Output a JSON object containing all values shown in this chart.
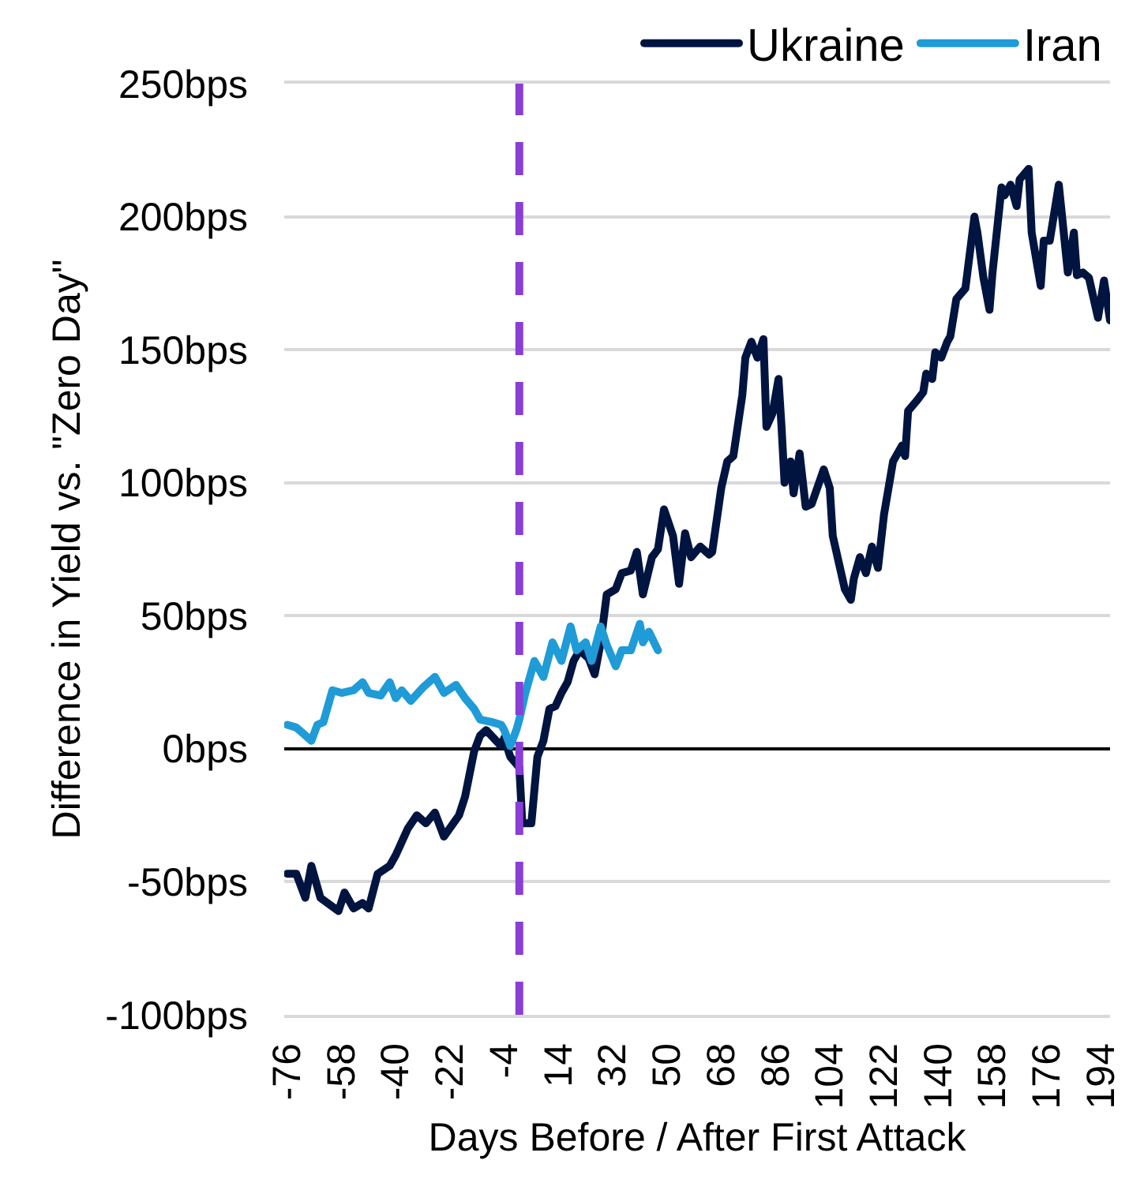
{
  "chart_data": {
    "type": "line",
    "xlabel": "Days Before / After First Attack",
    "ylabel": "Difference in Yield vs. \"Zero Day\"",
    "xlim": [
      -77,
      197
    ],
    "xticks": [
      -76,
      -58,
      -40,
      -22,
      -4,
      14,
      32,
      50,
      68,
      86,
      104,
      122,
      140,
      158,
      176,
      194
    ],
    "ylim": [
      -100,
      250
    ],
    "yticks": [
      {
        "value": -100,
        "label": "-100bps"
      },
      {
        "value": -50,
        "label": "-50bps"
      },
      {
        "value": 0,
        "label": "0bps"
      },
      {
        "value": 50,
        "label": "50bps"
      },
      {
        "value": 100,
        "label": "100bps"
      },
      {
        "value": 150,
        "label": "150bps"
      },
      {
        "value": 200,
        "label": "200bps"
      },
      {
        "value": 250,
        "label": "250bps"
      }
    ],
    "grid": "y",
    "legend": "top right",
    "marker": "none",
    "line_style": "solid",
    "ref_lines": [
      {
        "axis": "x",
        "value": 1,
        "color": "#8a3ed6",
        "line_style": "dashed"
      },
      {
        "axis": "y",
        "value": 0,
        "color": "#000000",
        "line_style": "solid"
      }
    ],
    "series": [
      {
        "name": "Ukraine",
        "color": "#001440",
        "x": [
          -76,
          -73,
          -70,
          -68,
          -65,
          -59,
          -57,
          -54,
          -51,
          -49,
          -46,
          -42,
          -40,
          -36,
          -33,
          -30,
          -27,
          -24,
          -19,
          -17,
          -14,
          -12,
          -10,
          -5,
          -4,
          -2,
          1,
          2,
          5,
          7,
          9,
          11,
          13,
          15,
          17,
          19,
          21,
          24,
          26,
          28,
          30,
          33,
          35,
          38,
          40,
          42,
          45,
          47,
          49,
          52,
          54,
          56,
          58,
          61,
          64,
          65,
          68,
          70,
          72,
          75,
          76,
          78,
          80,
          82,
          83,
          85,
          87,
          88,
          89,
          91,
          92,
          94,
          96,
          98,
          102,
          104,
          105,
          107,
          109,
          111,
          112,
          114,
          116,
          118,
          120,
          122,
          125,
          128,
          129,
          130,
          133,
          135,
          136,
          138,
          139,
          141,
          143,
          144,
          146,
          149,
          152,
          153,
          155,
          157,
          158,
          161,
          162,
          164,
          166,
          167,
          170,
          171,
          174,
          175,
          177,
          180,
          183,
          185,
          186,
          188,
          190,
          193,
          195,
          197
        ],
        "values": [
          -47,
          -47,
          -56,
          -44,
          -56,
          -61,
          -54,
          -60,
          -58,
          -60,
          -47,
          -44,
          -40,
          -30,
          -25,
          -28,
          -24,
          -33,
          -25,
          -18,
          -1,
          5,
          7,
          1,
          4,
          -3,
          -7,
          -28,
          -28,
          -3,
          3,
          15,
          16,
          21,
          25,
          33,
          37,
          34,
          28,
          40,
          58,
          60,
          66,
          67,
          74,
          58,
          72,
          75,
          90,
          80,
          62,
          81,
          72,
          76,
          73,
          74,
          98,
          108,
          110,
          133,
          147,
          153,
          147,
          154,
          121,
          126,
          139,
          121,
          100,
          108,
          96,
          111,
          91,
          92,
          105,
          98,
          80,
          70,
          60,
          56,
          64,
          72,
          66,
          76,
          68,
          88,
          108,
          114,
          110,
          127,
          131,
          134,
          141,
          139,
          149,
          147,
          153,
          155,
          169,
          173,
          200,
          194,
          177,
          165,
          179,
          211,
          208,
          212,
          204,
          214,
          218,
          194,
          174,
          191,
          191,
          212,
          179,
          194,
          178,
          179,
          177,
          162,
          176,
          161
        ]
      },
      {
        "name": "Iran",
        "color": "#1f9bd7",
        "x": [
          -76,
          -73,
          -71,
          -68,
          -66,
          -64,
          -61,
          -58,
          -54,
          -51,
          -49,
          -45,
          -42,
          -40,
          -38,
          -35,
          -31,
          -27,
          -24,
          -20,
          -17,
          -14,
          -12,
          -8,
          -5,
          -4,
          -2,
          0,
          1,
          3,
          6,
          9,
          12,
          15,
          18,
          20,
          23,
          25,
          28,
          30,
          33,
          35,
          38,
          41,
          42,
          44,
          47
        ],
        "values": [
          9,
          8,
          6,
          3,
          9,
          10,
          22,
          21,
          22,
          25,
          21,
          20,
          25,
          19,
          22,
          18,
          23,
          27,
          21,
          24,
          19,
          15,
          11,
          10,
          9,
          7,
          1,
          7,
          11,
          21,
          33,
          27,
          40,
          33,
          46,
          37,
          40,
          33,
          46,
          39,
          31,
          37,
          37,
          47,
          40,
          44,
          37
        ]
      }
    ]
  }
}
